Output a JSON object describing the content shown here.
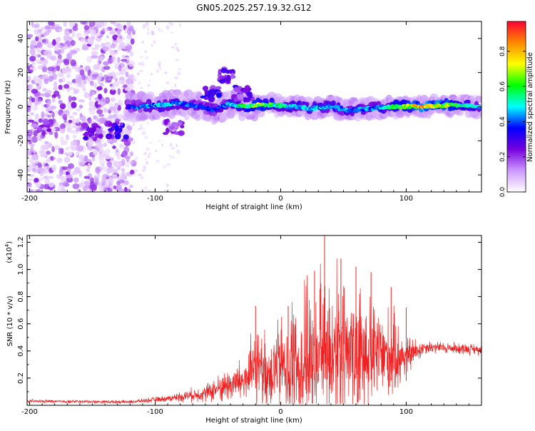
{
  "figure": {
    "title": "GN05.2025.257.19.32.G12"
  },
  "chart_data": [
    {
      "type": "heatmap",
      "name": "spectrogram",
      "title": "GN05.2025.257.19.32.G12",
      "xlabel": "Height of straight line (km)",
      "ylabel": "Frequency (Hz)",
      "xlim": [
        -202,
        160
      ],
      "ylim": [
        -50,
        50
      ],
      "xticks": [
        -200,
        -100,
        0,
        100
      ],
      "yticks": [
        -40,
        -20,
        0,
        20,
        40
      ],
      "colorbar": {
        "label": "Normalized spectral amplitude",
        "range": [
          0,
          0.97
        ],
        "ticks": [
          0.0,
          0.2,
          0.4,
          0.6,
          0.8
        ],
        "tick_labels": [
          "0.0",
          "0.2",
          "0.4",
          "0.6",
          "0.8"
        ],
        "stops": [
          "#ffffff",
          "#cc99ff",
          "#7700dd",
          "#0000ff",
          "#00ffff",
          "#00ff00",
          "#ffff00",
          "#ff8800",
          "#ff0033"
        ]
      },
      "main_track": [
        {
          "x": -122,
          "y": 0,
          "amp": 0.35
        },
        {
          "x": -110,
          "y": 0,
          "amp": 0.45
        },
        {
          "x": -95,
          "y": 1,
          "amp": 0.5
        },
        {
          "x": -80,
          "y": 2,
          "amp": 0.45
        },
        {
          "x": -65,
          "y": 0,
          "amp": 0.4
        },
        {
          "x": -52,
          "y": -2,
          "amp": 0.4
        },
        {
          "x": -42,
          "y": 2,
          "amp": 0.45
        },
        {
          "x": -30,
          "y": 0,
          "amp": 0.6
        },
        {
          "x": -18,
          "y": 1,
          "amp": 0.75
        },
        {
          "x": -5,
          "y": 1,
          "amp": 0.6
        },
        {
          "x": 10,
          "y": 0,
          "amp": 0.55
        },
        {
          "x": 25,
          "y": -1,
          "amp": 0.5
        },
        {
          "x": 40,
          "y": 0,
          "amp": 0.5
        },
        {
          "x": 55,
          "y": -2,
          "amp": 0.45
        },
        {
          "x": 70,
          "y": -1,
          "amp": 0.45
        },
        {
          "x": 85,
          "y": 0,
          "amp": 0.55
        },
        {
          "x": 100,
          "y": 0,
          "amp": 0.7
        },
        {
          "x": 115,
          "y": 0,
          "amp": 0.9
        },
        {
          "x": 130,
          "y": 1,
          "amp": 0.75
        },
        {
          "x": 145,
          "y": 1,
          "amp": 0.6
        },
        {
          "x": 158,
          "y": 0,
          "amp": 0.55
        }
      ],
      "secondary_features": [
        {
          "x": -130,
          "y": -14,
          "amp": 0.3
        },
        {
          "x": -150,
          "y": -15,
          "amp": 0.25
        },
        {
          "x": -190,
          "y": -12,
          "amp": 0.2
        },
        {
          "x": -45,
          "y": 18,
          "amp": 0.25
        },
        {
          "x": -85,
          "y": -12,
          "amp": 0.2
        },
        {
          "x": -55,
          "y": 8,
          "amp": 0.3
        },
        {
          "x": -30,
          "y": 8,
          "amp": 0.25
        }
      ]
    },
    {
      "type": "line",
      "name": "snr",
      "xlabel": "Height of straight line (km)",
      "ylabel": "SNR (10 * v/v)",
      "scale_label": "(x10",
      "scale_exp": "4",
      "scale_close": ")",
      "xlim": [
        -202,
        160
      ],
      "ylim": [
        0,
        12500
      ],
      "xticks": [
        -200,
        -100,
        0,
        100
      ],
      "yticks": [
        2000,
        4000,
        6000,
        8000,
        10000,
        12000
      ],
      "ytick_labels": [
        "0.2",
        "0.4",
        "0.6",
        "0.8",
        "1.0",
        "1.2"
      ],
      "color": "#ee2222",
      "envelope": [
        {
          "x": -202,
          "base": 300,
          "amp": 150
        },
        {
          "x": -120,
          "base": 250,
          "amp": 150
        },
        {
          "x": -90,
          "base": 500,
          "amp": 300
        },
        {
          "x": -60,
          "base": 900,
          "amp": 800
        },
        {
          "x": -45,
          "base": 1400,
          "amp": 1500
        },
        {
          "x": -30,
          "base": 1800,
          "amp": 2200
        },
        {
          "x": -20,
          "base": 2500,
          "amp": 4000
        },
        {
          "x": -10,
          "base": 2500,
          "amp": 3500
        },
        {
          "x": 0,
          "base": 3000,
          "amp": 4500
        },
        {
          "x": 20,
          "base": 3500,
          "amp": 6500
        },
        {
          "x": 35,
          "base": 4000,
          "amp": 8000
        },
        {
          "x": 50,
          "base": 4000,
          "amp": 6500
        },
        {
          "x": 70,
          "base": 3800,
          "amp": 5500
        },
        {
          "x": 90,
          "base": 3600,
          "amp": 4000
        },
        {
          "x": 100,
          "base": 3600,
          "amp": 2000
        },
        {
          "x": 115,
          "base": 4300,
          "amp": 600
        },
        {
          "x": 160,
          "base": 4100,
          "amp": 500
        }
      ],
      "peaks": [
        {
          "x": -20,
          "y": 7300
        },
        {
          "x": 6,
          "y": 7300
        },
        {
          "x": 27,
          "y": 9900
        },
        {
          "x": 35,
          "y": 12500
        },
        {
          "x": 48,
          "y": 10800
        },
        {
          "x": 60,
          "y": 10200
        },
        {
          "x": 72,
          "y": 9800
        },
        {
          "x": 88,
          "y": 8700
        },
        {
          "x": 100,
          "y": 7200
        }
      ]
    }
  ]
}
